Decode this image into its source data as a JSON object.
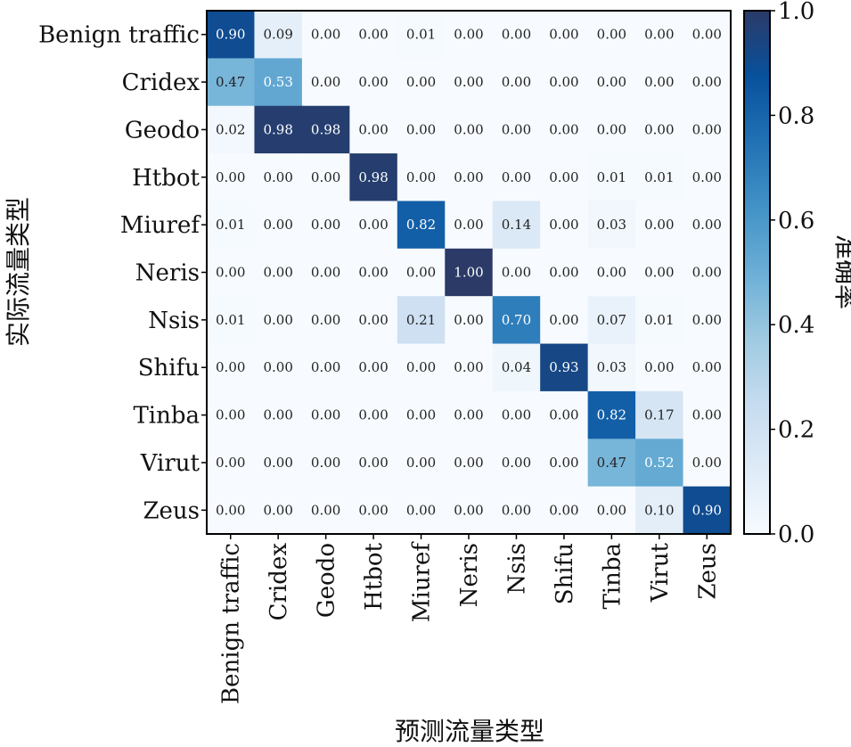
{
  "chart_data": {
    "type": "heatmap",
    "rows": [
      "Benign traffic",
      "Cridex",
      "Geodo",
      "Htbot",
      "Miuref",
      "Neris",
      "Nsis",
      "Shifu",
      "Tinba",
      "Virut",
      "Zeus"
    ],
    "cols": [
      "Benign traffic",
      "Cridex",
      "Geodo",
      "Htbot",
      "Miuref",
      "Neris",
      "Nsis",
      "Shifu",
      "Tinba",
      "Virut",
      "Zeus"
    ],
    "values": [
      [
        0.9,
        0.09,
        0.0,
        0.0,
        0.01,
        0.0,
        0.0,
        0.0,
        0.0,
        0.0,
        0.0
      ],
      [
        0.47,
        0.53,
        0.0,
        0.0,
        0.0,
        0.0,
        0.0,
        0.0,
        0.0,
        0.0,
        0.0
      ],
      [
        0.02,
        0.98,
        0.98,
        0.0,
        0.0,
        0.0,
        0.0,
        0.0,
        0.0,
        0.0,
        0.0
      ],
      [
        0.0,
        0.0,
        0.0,
        0.98,
        0.0,
        0.0,
        0.0,
        0.0,
        0.01,
        0.01,
        0.0
      ],
      [
        0.01,
        0.0,
        0.0,
        0.0,
        0.82,
        0.0,
        0.14,
        0.0,
        0.03,
        0.0,
        0.0
      ],
      [
        0.0,
        0.0,
        0.0,
        0.0,
        0.0,
        1.0,
        0.0,
        0.0,
        0.0,
        0.0,
        0.0
      ],
      [
        0.01,
        0.0,
        0.0,
        0.0,
        0.21,
        0.0,
        0.7,
        0.0,
        0.07,
        0.01,
        0.0
      ],
      [
        0.0,
        0.0,
        0.0,
        0.0,
        0.0,
        0.0,
        0.04,
        0.93,
        0.03,
        0.0,
        0.0
      ],
      [
        0.0,
        0.0,
        0.0,
        0.0,
        0.0,
        0.0,
        0.0,
        0.0,
        0.82,
        0.17,
        0.0
      ],
      [
        0.0,
        0.0,
        0.0,
        0.0,
        0.0,
        0.0,
        0.0,
        0.0,
        0.47,
        0.52,
        0.0
      ],
      [
        0.0,
        0.0,
        0.0,
        0.0,
        0.0,
        0.0,
        0.0,
        0.0,
        0.0,
        0.1,
        0.9
      ]
    ],
    "xlabel": "预测流量类型",
    "ylabel": "实际流量类型",
    "colorbar": {
      "label": "准确率",
      "range": [
        0.0,
        1.0
      ],
      "ticks": [
        "0.0",
        "0.2",
        "0.4",
        "0.6",
        "0.8",
        "1.0"
      ],
      "colormap": "Blues"
    },
    "grid": false
  }
}
